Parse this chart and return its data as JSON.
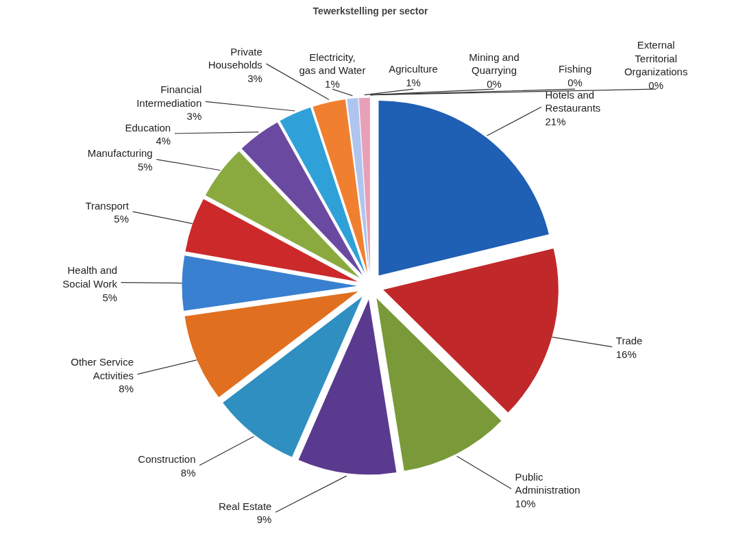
{
  "chart_data": {
    "type": "pie",
    "title": "Tewerkstelling per sector",
    "categories": [
      "Hotels and Restaurants",
      "Trade",
      "Public Administration",
      "Real Estate",
      "Construction",
      "Other Service Activities",
      "Health and Social Work",
      "Transport",
      "Manufacturing",
      "Education",
      "Financial Intermediation",
      "Private Households",
      "Electricity, gas and Water",
      "Agriculture",
      "Mining and Quarrying",
      "Fishing",
      "External Territorial Organizations"
    ],
    "values": [
      21,
      16,
      10,
      9,
      8,
      8,
      5,
      5,
      5,
      4,
      3,
      3,
      1,
      1,
      0,
      0,
      0
    ],
    "value_labels": [
      "21%",
      "16%",
      "10%",
      "9%",
      "8%",
      "8%",
      "5%",
      "5%",
      "5%",
      "4%",
      "3%",
      "3%",
      "1%",
      "1%",
      "0%",
      "0%",
      "0%"
    ],
    "colors": [
      "#1f5fb4",
      "#c0282a",
      "#7a9a3a",
      "#5a3a8e",
      "#2f8fc0",
      "#e07020",
      "#3a80d0",
      "#cc2a2a",
      "#8aaa40",
      "#6a4aa0",
      "#30a0d8",
      "#f08030",
      "#b0c4f0",
      "#e8a0b8",
      "#9ab04a",
      "#7a5aa8",
      "#40b0e0"
    ]
  }
}
